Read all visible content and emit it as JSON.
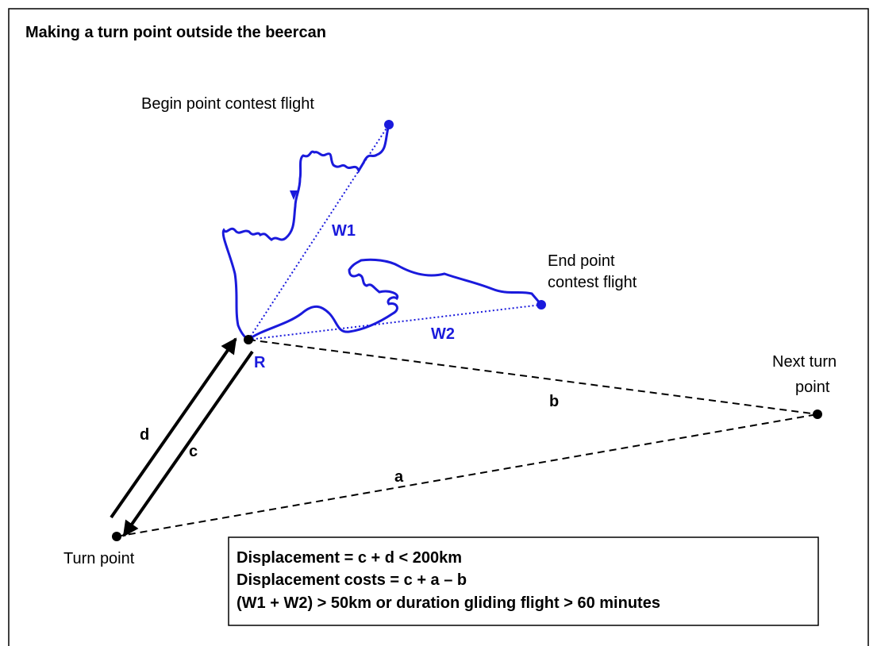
{
  "title": "Making a turn point outside the beercan",
  "points": {
    "begin": "Begin point contest flight",
    "end": [
      "End point",
      "contest flight"
    ],
    "next": [
      "Next turn",
      "point"
    ],
    "turn": "Turn point",
    "r": "R"
  },
  "legs": {
    "w1": "W1",
    "w2": "W2",
    "a": "a",
    "b": "b",
    "c": "c",
    "d": "d"
  },
  "formulas": [
    "Displacement = c + d < 200km",
    "Displacement costs = c + a – b",
    "(W1 + W2)  > 50km or duration gliding flight > 60 minutes"
  ]
}
